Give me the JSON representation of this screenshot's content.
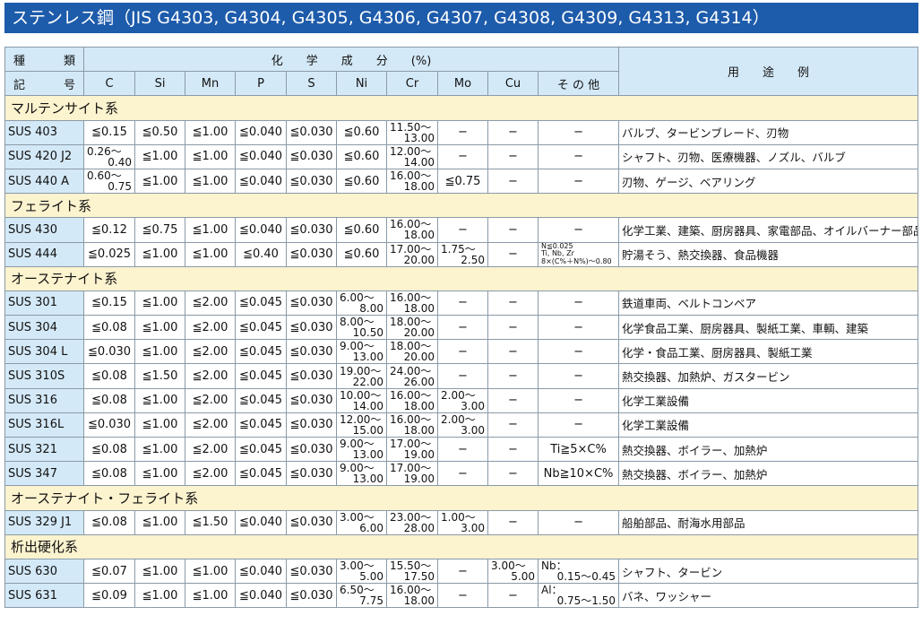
{
  "title": "ステンレス鋼（JIS G4303, G4304, G4305, G4306, G4307, G4308, G4309, G4313, G4314）",
  "header": {
    "kind_top": [
      "種",
      "類"
    ],
    "kind_bottom": [
      "記",
      "号"
    ],
    "composition": "化　　学　　成　　分　　(%)",
    "use": "用　　途　　例",
    "elements": [
      "C",
      "Si",
      "Mn",
      "P",
      "S",
      "Ni",
      "Cr",
      "Mo",
      "Cu",
      "そ の 他"
    ]
  },
  "colors": {
    "title_bar": "#1d5bab",
    "header_bg": "#d4e9f7",
    "category_bg": "#fcf3cf"
  },
  "groups": [
    {
      "category": "マルテンサイト系",
      "rows": [
        {
          "name": "SUS 403",
          "values": [
            "≦0.15",
            "≦0.50",
            "≦1.00",
            "≦0.040",
            "≦0.030",
            "≦0.60",
            [
              "11.50〜",
              "13.00"
            ],
            "−",
            "−",
            "−"
          ],
          "use": "バルブ、タービンブレード、刃物"
        },
        {
          "name": "SUS 420 J2",
          "values": [
            [
              "0.26〜",
              "0.40"
            ],
            "≦1.00",
            "≦1.00",
            "≦0.040",
            "≦0.030",
            "≦0.60",
            [
              "12.00〜",
              "14.00"
            ],
            "−",
            "−",
            "−"
          ],
          "use": "シャフト、刃物、医療機器、ノズル、バルブ"
        },
        {
          "name": "SUS 440 A",
          "values": [
            [
              "0.60〜",
              "0.75"
            ],
            "≦1.00",
            "≦1.00",
            "≦0.040",
            "≦0.030",
            "≦0.60",
            [
              "16.00〜",
              "18.00"
            ],
            "≦0.75",
            "−",
            "−"
          ],
          "use": "刃物、ゲージ、ベアリング"
        }
      ]
    },
    {
      "category": "フェライト系",
      "rows": [
        {
          "name": "SUS 430",
          "values": [
            "≦0.12",
            "≦0.75",
            "≦1.00",
            "≦0.040",
            "≦0.030",
            "≦0.60",
            [
              "16.00〜",
              "18.00"
            ],
            "−",
            "−",
            "−"
          ],
          "use": "化学工業、建築、厨房器具、家電部品、オイルバーナー部品"
        },
        {
          "name": "SUS 444",
          "values": [
            "≦0.025",
            "≦1.00",
            "≦1.00",
            "≦0.40",
            "≦0.030",
            "≦0.60",
            [
              "17.00〜",
              "20.00"
            ],
            [
              "1.75〜",
              "2.50"
            ],
            "−",
            {
              "small": [
                "N≦0.025",
                "Ti, Nb, Zr",
                "8×(C%＋N%)〜0.80"
              ]
            }
          ],
          "use": "貯湯そう、熱交換器、食品機器"
        }
      ]
    },
    {
      "category": "オーステナイト系",
      "rows": [
        {
          "name": "SUS 301",
          "values": [
            "≦0.15",
            "≦1.00",
            "≦2.00",
            "≦0.045",
            "≦0.030",
            [
              "6.00〜",
              "8.00"
            ],
            [
              "16.00〜",
              "18.00"
            ],
            "−",
            "−",
            "−"
          ],
          "use": "鉄道車両、ベルトコンベア"
        },
        {
          "name": "SUS 304",
          "values": [
            "≦0.08",
            "≦1.00",
            "≦2.00",
            "≦0.045",
            "≦0.030",
            [
              "8.00〜",
              "10.50"
            ],
            [
              "18.00〜",
              "20.00"
            ],
            "−",
            "−",
            "−"
          ],
          "use": "化学食品工業、厨房器具、製紙工業、車輌、建築"
        },
        {
          "name": "SUS 304 L",
          "values": [
            "≦0.030",
            "≦1.00",
            "≦2.00",
            "≦0.045",
            "≦0.030",
            [
              "9.00〜",
              "13.00"
            ],
            [
              "18.00〜",
              "20.00"
            ],
            "−",
            "−",
            "−"
          ],
          "use": "化学・食品工業、厨房器具、製紙工業"
        },
        {
          "name": "SUS 310S",
          "values": [
            "≦0.08",
            "≦1.50",
            "≦2.00",
            "≦0.045",
            "≦0.030",
            [
              "19.00〜",
              "22.00"
            ],
            [
              "24.00〜",
              "26.00"
            ],
            "−",
            "−",
            "−"
          ],
          "use": "熱交換器、加熱炉、ガスタービン"
        },
        {
          "name": "SUS 316",
          "values": [
            "≦0.08",
            "≦1.00",
            "≦2.00",
            "≦0.045",
            "≦0.030",
            [
              "10.00〜",
              "14.00"
            ],
            [
              "16.00〜",
              "18.00"
            ],
            [
              "2.00〜",
              "3.00"
            ],
            "−",
            "−"
          ],
          "use": "化学工業設備"
        },
        {
          "name": "SUS 316L",
          "values": [
            "≦0.030",
            "≦1.00",
            "≦2.00",
            "≦0.045",
            "≦0.030",
            [
              "12.00〜",
              "15.00"
            ],
            [
              "16.00〜",
              "18.00"
            ],
            [
              "2.00〜",
              "3.00"
            ],
            "−",
            "−"
          ],
          "use": "化学工業設備"
        },
        {
          "name": "SUS 321",
          "values": [
            "≦0.08",
            "≦1.00",
            "≦2.00",
            "≦0.045",
            "≦0.030",
            [
              "9.00〜",
              "13.00"
            ],
            [
              "17.00〜",
              "19.00"
            ],
            "−",
            "−",
            "Ti≧5×C%"
          ],
          "use": "熱交換器、ボイラー、加熱炉"
        },
        {
          "name": "SUS 347",
          "values": [
            "≦0.08",
            "≦1.00",
            "≦2.00",
            "≦0.045",
            "≦0.030",
            [
              "9.00〜",
              "13.00"
            ],
            [
              "17.00〜",
              "19.00"
            ],
            "−",
            "−",
            "Nb≧10×C%"
          ],
          "use": "熱交換器、ボイラー、加熱炉"
        }
      ]
    },
    {
      "category": "オーステナイト・フェライト系",
      "rows": [
        {
          "name": "SUS 329 J1",
          "values": [
            "≦0.08",
            "≦1.00",
            "≦1.50",
            "≦0.040",
            "≦0.030",
            [
              "3.00〜",
              "6.00"
            ],
            [
              "23.00〜",
              "28.00"
            ],
            [
              "1.00〜",
              "3.00"
            ],
            "−",
            "−"
          ],
          "use": "船舶部品、耐海水用部品"
        }
      ]
    },
    {
      "category": "析出硬化系",
      "rows": [
        {
          "name": "SUS 630",
          "values": [
            "≦0.07",
            "≦1.00",
            "≦1.00",
            "≦0.040",
            "≦0.030",
            [
              "3.00〜",
              "5.00"
            ],
            [
              "15.50〜",
              "17.50"
            ],
            "−",
            [
              "3.00〜",
              "5.00"
            ],
            [
              "Nb：",
              "0.15〜0.45"
            ]
          ],
          "use": "シャフト、タービン"
        },
        {
          "name": "SUS 631",
          "values": [
            "≦0.09",
            "≦1.00",
            "≦1.00",
            "≦0.040",
            "≦0.030",
            [
              "6.50〜",
              "7.75"
            ],
            [
              "16.00〜",
              "18.00"
            ],
            "−",
            "−",
            [
              "Al：",
              "0.75〜1.50"
            ]
          ],
          "use": "バネ、ワッシャー"
        }
      ]
    }
  ]
}
